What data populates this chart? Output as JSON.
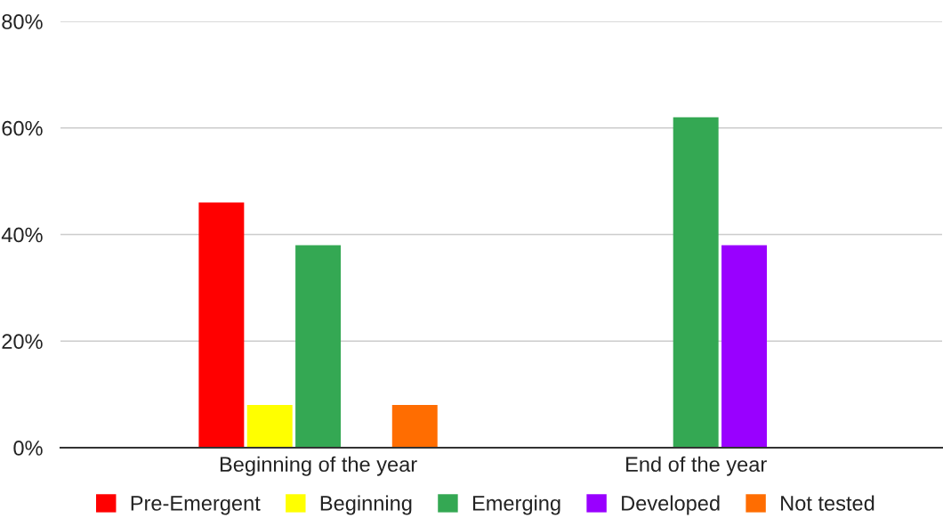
{
  "chart_data": {
    "type": "bar",
    "categories": [
      "Beginning of the year",
      "End of the year"
    ],
    "series": [
      {
        "name": "Pre-Emergent",
        "color": "#ff0000",
        "values": [
          46,
          null
        ]
      },
      {
        "name": "Beginning",
        "color": "#ffff00",
        "values": [
          8,
          null
        ]
      },
      {
        "name": "Emerging",
        "color": "#34a853",
        "values": [
          38,
          62
        ]
      },
      {
        "name": "Developed",
        "color": "#9900ff",
        "values": [
          null,
          38
        ]
      },
      {
        "name": "Not tested",
        "color": "#ff6d01",
        "values": [
          8,
          null
        ]
      }
    ],
    "ylim": [
      0,
      80
    ],
    "yticks": [
      {
        "value": 0,
        "label": "0%"
      },
      {
        "value": 20,
        "label": "20%"
      },
      {
        "value": 40,
        "label": "40%"
      },
      {
        "value": 60,
        "label": "60%"
      },
      {
        "value": 80,
        "label": "80%"
      }
    ],
    "grid": "y",
    "legend": "bottom"
  }
}
